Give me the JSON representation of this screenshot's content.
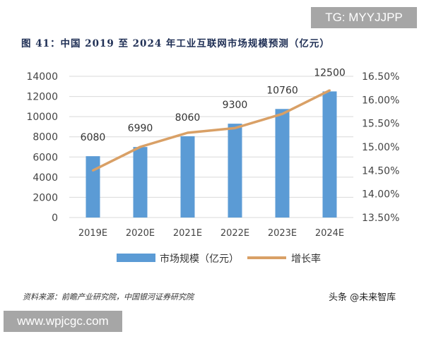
{
  "watermark_top": "TG: MYYJJPP",
  "watermark_bottom": "www.wpjcgc.com",
  "logo_text": "头条 @未来智库",
  "source": "资料来源：前瞻产业研究院，中国银河证券研究院",
  "colors": {
    "bar": "#5b9bd5",
    "line": "#d9a066",
    "title": "#1f2f55"
  },
  "chart_data": {
    "type": "bar+line",
    "title": "图 41：中国 2019 至 2024 年工业互联网市场规模预测（亿元）",
    "categories": [
      "2019E",
      "2020E",
      "2021E",
      "2022E",
      "2023E",
      "2024E"
    ],
    "series": [
      {
        "name": "市场规模（亿元）",
        "type": "bar",
        "axis": "left",
        "values": [
          6080,
          6990,
          8060,
          9300,
          10760,
          12500
        ],
        "data_labels": [
          "6080",
          "6990",
          "8060",
          "9300",
          "10760",
          "12500"
        ]
      },
      {
        "name": "增长率",
        "type": "line",
        "axis": "right",
        "values": [
          14.5,
          15.0,
          15.3,
          15.4,
          15.7,
          16.2
        ]
      }
    ],
    "ylim": [
      0,
      14000
    ],
    "yticks": [
      "0",
      "2000",
      "4000",
      "6000",
      "8000",
      "10000",
      "12000",
      "14000"
    ],
    "y2lim": [
      13.5,
      16.5
    ],
    "y2ticks": [
      "13.50%",
      "14.00%",
      "14.50%",
      "15.00%",
      "15.50%",
      "16.00%",
      "16.50%"
    ],
    "grid": true,
    "legend": "bottom"
  }
}
